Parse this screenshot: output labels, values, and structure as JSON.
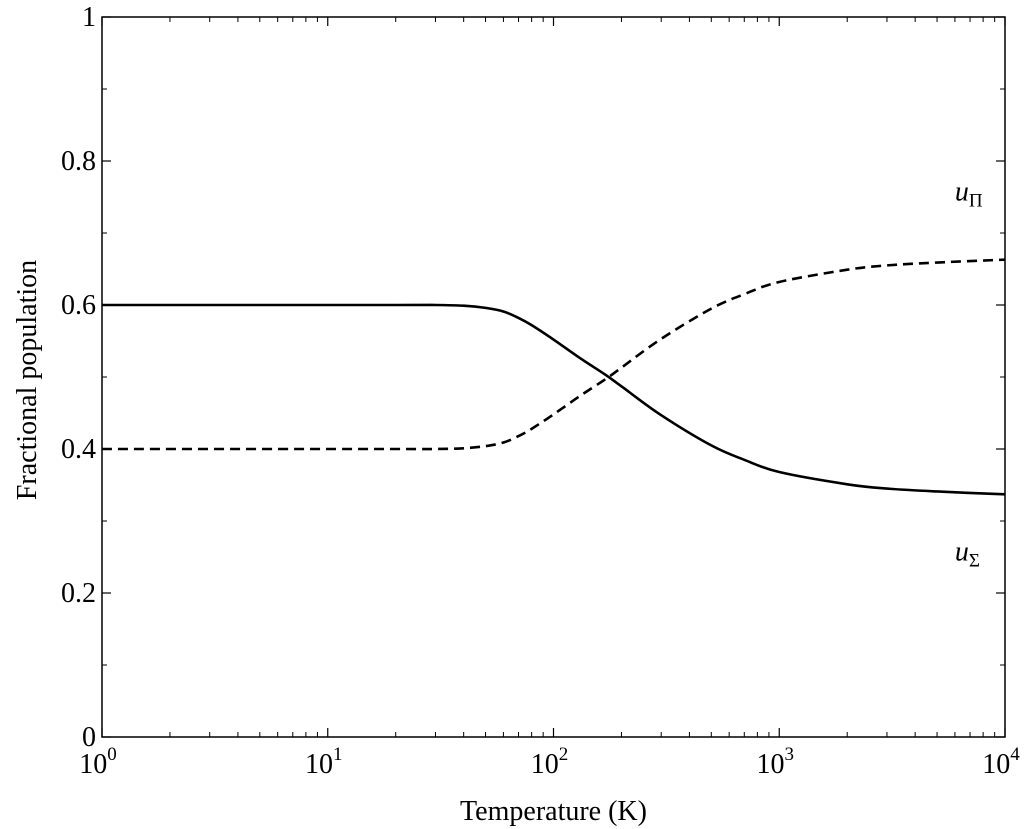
{
  "chart_data": {
    "type": "line",
    "xlabel": "Temperature (K)",
    "ylabel": "Fractional population",
    "x_scale": "log",
    "xlim": [
      1,
      10000
    ],
    "ylim": [
      0,
      1
    ],
    "x_ticks": [
      {
        "base": "10",
        "exp": "0",
        "value": 1
      },
      {
        "base": "10",
        "exp": "1",
        "value": 10
      },
      {
        "base": "10",
        "exp": "2",
        "value": 100
      },
      {
        "base": "10",
        "exp": "3",
        "value": 1000
      },
      {
        "base": "10",
        "exp": "4",
        "value": 10000
      }
    ],
    "y_ticks": [
      "0",
      "0.2",
      "0.4",
      "0.6",
      "0.8",
      "1"
    ],
    "grid": false,
    "series": [
      {
        "style": "solid",
        "color": "#000000",
        "x": [
          1,
          10,
          20,
          30,
          40,
          50,
          60,
          70,
          80,
          100,
          130,
          170,
          200,
          300,
          500,
          700,
          1000,
          2000,
          3000,
          5000,
          10000
        ],
        "values": [
          0.6,
          0.6,
          0.6,
          0.6,
          0.599,
          0.596,
          0.591,
          0.582,
          0.572,
          0.552,
          0.527,
          0.503,
          0.487,
          0.447,
          0.405,
          0.385,
          0.368,
          0.351,
          0.345,
          0.341,
          0.337
        ]
      },
      {
        "style": "dashed",
        "color": "#000000",
        "x": [
          1,
          10,
          20,
          30,
          40,
          50,
          60,
          70,
          80,
          100,
          130,
          170,
          200,
          300,
          500,
          700,
          1000,
          2000,
          3000,
          5000,
          10000
        ],
        "values": [
          0.4,
          0.4,
          0.4,
          0.4,
          0.401,
          0.404,
          0.409,
          0.418,
          0.428,
          0.448,
          0.473,
          0.497,
          0.513,
          0.553,
          0.595,
          0.615,
          0.632,
          0.649,
          0.655,
          0.659,
          0.663
        ]
      }
    ],
    "annotations": [
      {
        "main": "u",
        "sub": "Π",
        "x": 6000,
        "y": 0.745
      },
      {
        "main": "u",
        "sub": "Σ",
        "x": 6000,
        "y": 0.245
      }
    ]
  }
}
